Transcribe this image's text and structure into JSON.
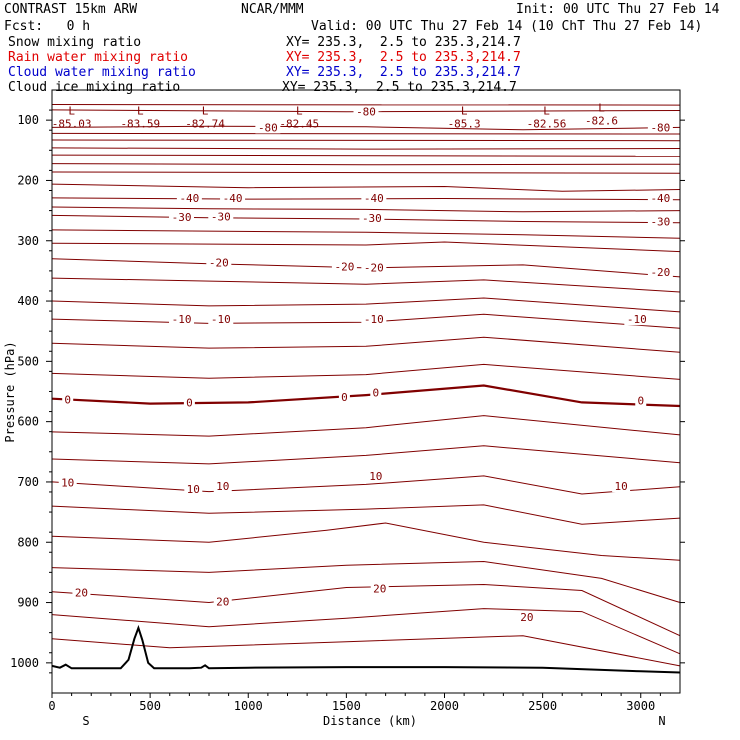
{
  "header": {
    "title": "CONTRAST 15km ARW",
    "center": "NCAR/MMM",
    "init": "Init: 00 UTC Thu 27 Feb 14",
    "fcst": "Fcst:   0 h",
    "valid": "Valid: 00 UTC Thu 27 Feb 14 (10 ChT Thu 27 Feb 14)",
    "legend": [
      {
        "label": "Snow mixing ratio",
        "xy": "XY= 235.3,  2.5 to 235.3,214.7",
        "color": "#000000"
      },
      {
        "label": "Rain water mixing ratio",
        "xy": "XY= 235.3,  2.5 to 235.3,214.7",
        "color": "#e00000"
      },
      {
        "label": "Cloud water mixing ratio",
        "xy": "XY= 235.3,  2.5 to 235.3,214.7",
        "color": "#0000cc"
      },
      {
        "label": "Cloud ice mixing ratio",
        "xy": "XY= 235.3,  2.5 to 235.3,214.7",
        "color": "#000000"
      }
    ]
  },
  "colors": {
    "contour": "#800000",
    "zero_contour": "#800000",
    "terrain": "#000000"
  },
  "chart_data": {
    "type": "line",
    "title": "CONTRAST 15km ARW",
    "xlabel": "Distance (km)",
    "ylabel": "Pressure (hPa)",
    "xlim": [
      0,
      3200
    ],
    "ylim": [
      1050,
      50
    ],
    "y_reversed": true,
    "xticks": [
      0,
      500,
      1000,
      1500,
      2000,
      2500,
      3000
    ],
    "yticks": [
      100,
      200,
      300,
      400,
      500,
      600,
      700,
      800,
      900,
      1000
    ],
    "x_end_labels": {
      "left": "S",
      "right": "N"
    },
    "contour_interval_C": 5,
    "contours": [
      {
        "x": [
          0,
          3200
        ],
        "p": [
          74,
          75
        ],
        "label": ""
      },
      {
        "x": [
          0,
          1500,
          3200
        ],
        "p": [
          83,
          86,
          84
        ],
        "label": "-80"
      },
      {
        "x": [
          0,
          800,
          1600,
          2400,
          3200
        ],
        "p": [
          112,
          110,
          111,
          116,
          112
        ],
        "label": ""
      },
      {
        "x": [
          0,
          3200
        ],
        "p": [
          122,
          123
        ],
        "label": ""
      },
      {
        "x": [
          0,
          3200
        ],
        "p": [
          133,
          134
        ],
        "label": ""
      },
      {
        "x": [
          0,
          1600,
          3200
        ],
        "p": [
          146,
          148,
          147
        ],
        "label": ""
      },
      {
        "x": [
          0,
          3200
        ],
        "p": [
          158,
          160
        ],
        "label": ""
      },
      {
        "x": [
          0,
          1600,
          3200
        ],
        "p": [
          172,
          174,
          173
        ],
        "label": ""
      },
      {
        "x": [
          0,
          3200
        ],
        "p": [
          186,
          188
        ],
        "label": ""
      },
      {
        "x": [
          0,
          1000,
          2000,
          2600,
          3200
        ],
        "p": [
          206,
          212,
          210,
          218,
          215
        ],
        "label": ""
      },
      {
        "x": [
          0,
          1000,
          2000,
          3200
        ],
        "p": [
          229,
          231,
          230,
          232
        ],
        "label": "-40"
      },
      {
        "x": [
          0,
          800,
          1600,
          2400,
          3200
        ],
        "p": [
          244,
          247,
          248,
          252,
          250
        ],
        "label": ""
      },
      {
        "x": [
          0,
          800,
          1600,
          2400,
          3200
        ],
        "p": [
          258,
          262,
          264,
          268,
          270
        ],
        "label": "-30"
      },
      {
        "x": [
          0,
          1600,
          2400,
          3200
        ],
        "p": [
          282,
          286,
          290,
          296
        ],
        "label": ""
      },
      {
        "x": [
          0,
          1600,
          2000,
          3200
        ],
        "p": [
          304,
          307,
          302,
          318
        ],
        "label": ""
      },
      {
        "x": [
          0,
          800,
          1600,
          2400,
          3200
        ],
        "p": [
          330,
          338,
          345,
          340,
          360
        ],
        "label": "-20"
      },
      {
        "x": [
          0,
          1600,
          2200,
          3200
        ],
        "p": [
          362,
          372,
          365,
          385
        ],
        "label": ""
      },
      {
        "x": [
          0,
          800,
          1600,
          2200,
          3200
        ],
        "p": [
          400,
          408,
          405,
          395,
          418
        ],
        "label": ""
      },
      {
        "x": [
          0,
          800,
          1600,
          2200,
          3200
        ],
        "p": [
          430,
          437,
          435,
          422,
          445
        ],
        "label": "-10"
      },
      {
        "x": [
          0,
          800,
          1600,
          2200,
          3200
        ],
        "p": [
          470,
          478,
          475,
          460,
          485
        ],
        "label": ""
      },
      {
        "x": [
          0,
          800,
          1600,
          2200,
          3200
        ],
        "p": [
          520,
          528,
          522,
          505,
          530
        ],
        "label": ""
      },
      {
        "x": [
          0,
          500,
          1000,
          1600,
          2200,
          2700,
          3200
        ],
        "p": [
          562,
          570,
          568,
          556,
          540,
          568,
          574
        ],
        "label": "0",
        "bold": true
      },
      {
        "x": [
          0,
          800,
          1600,
          2200,
          3200
        ],
        "p": [
          617,
          624,
          610,
          590,
          622
        ],
        "label": ""
      },
      {
        "x": [
          0,
          800,
          1600,
          2200,
          3200
        ],
        "p": [
          662,
          670,
          656,
          640,
          668
        ],
        "label": ""
      },
      {
        "x": [
          0,
          800,
          1600,
          2200,
          2700,
          3200
        ],
        "p": [
          700,
          716,
          704,
          690,
          720,
          708
        ],
        "label": "10"
      },
      {
        "x": [
          0,
          800,
          1600,
          2200,
          2700,
          3200
        ],
        "p": [
          740,
          752,
          745,
          738,
          770,
          760
        ],
        "label": ""
      },
      {
        "x": [
          0,
          800,
          1400,
          1700,
          2200,
          2800,
          3200
        ],
        "p": [
          790,
          800,
          780,
          768,
          800,
          822,
          830
        ],
        "label": ""
      },
      {
        "x": [
          0,
          800,
          1500,
          2200,
          2800,
          3200
        ],
        "p": [
          842,
          850,
          838,
          832,
          860,
          900
        ],
        "label": ""
      },
      {
        "x": [
          0,
          800,
          1500,
          2200,
          2700,
          3200
        ],
        "p": [
          882,
          900,
          875,
          870,
          880,
          955
        ],
        "label": "20"
      },
      {
        "x": [
          0,
          800,
          1500,
          2200,
          2700,
          3200
        ],
        "p": [
          920,
          940,
          926,
          910,
          915,
          985
        ],
        "label": ""
      },
      {
        "x": [
          0,
          600,
          1500,
          2400,
          3200
        ],
        "p": [
          960,
          975,
          965,
          955,
          1005
        ],
        "label": ""
      }
    ],
    "extrema": [
      {
        "x": 100,
        "p": 104,
        "type": "L",
        "value": "-85.03"
      },
      {
        "x": 450,
        "p": 104,
        "type": "L",
        "value": "-83.59"
      },
      {
        "x": 780,
        "p": 104,
        "type": "L",
        "value": "-82.74"
      },
      {
        "x": 1260,
        "p": 104,
        "type": "L",
        "value": "-82.45"
      },
      {
        "x": 2100,
        "p": 104,
        "type": "L",
        "value": "-85.3"
      },
      {
        "x": 2520,
        "p": 104,
        "type": "L",
        "value": "-82.56"
      },
      {
        "x": 2800,
        "p": 99,
        "type": "L",
        "value": "-82.6"
      }
    ],
    "inline_labels": [
      {
        "x": 1100,
        "p": 112,
        "text": "-80"
      },
      {
        "x": 1600,
        "p": 86,
        "text": "-80"
      },
      {
        "x": 3100,
        "p": 112,
        "text": "-80"
      },
      {
        "x": 700,
        "p": 229,
        "text": "-40"
      },
      {
        "x": 920,
        "p": 229,
        "text": "-40"
      },
      {
        "x": 1640,
        "p": 229,
        "text": "-40"
      },
      {
        "x": 3100,
        "p": 229,
        "text": "-40"
      },
      {
        "x": 660,
        "p": 261,
        "text": "-30"
      },
      {
        "x": 860,
        "p": 260,
        "text": "-30"
      },
      {
        "x": 1630,
        "p": 262,
        "text": "-30"
      },
      {
        "x": 3100,
        "p": 268,
        "text": "-30"
      },
      {
        "x": 850,
        "p": 336,
        "text": "-20"
      },
      {
        "x": 1490,
        "p": 343,
        "text": "-20"
      },
      {
        "x": 1640,
        "p": 344,
        "text": "-20"
      },
      {
        "x": 3100,
        "p": 352,
        "text": "-20"
      },
      {
        "x": 660,
        "p": 430,
        "text": "-10"
      },
      {
        "x": 860,
        "p": 430,
        "text": "-10"
      },
      {
        "x": 1640,
        "p": 430,
        "text": "-10"
      },
      {
        "x": 2980,
        "p": 430,
        "text": "-10"
      },
      {
        "x": 80,
        "p": 563,
        "text": "0"
      },
      {
        "x": 700,
        "p": 568,
        "text": "0"
      },
      {
        "x": 1490,
        "p": 559,
        "text": "0"
      },
      {
        "x": 1650,
        "p": 552,
        "text": "0"
      },
      {
        "x": 3000,
        "p": 565,
        "text": "0"
      },
      {
        "x": 80,
        "p": 701,
        "text": "10"
      },
      {
        "x": 720,
        "p": 712,
        "text": "10"
      },
      {
        "x": 870,
        "p": 707,
        "text": "10"
      },
      {
        "x": 1650,
        "p": 690,
        "text": "10"
      },
      {
        "x": 2900,
        "p": 707,
        "text": "10"
      },
      {
        "x": 150,
        "p": 883,
        "text": "20"
      },
      {
        "x": 870,
        "p": 898,
        "text": "20"
      },
      {
        "x": 1670,
        "p": 877,
        "text": "20"
      },
      {
        "x": 2420,
        "p": 924,
        "text": "20"
      }
    ],
    "terrain_surface": {
      "x": [
        0,
        40,
        70,
        100,
        200,
        350,
        390,
        420,
        440,
        460,
        490,
        520,
        700,
        760,
        780,
        800,
        1000,
        1500,
        2000,
        2500,
        3000,
        3200
      ],
      "p": [
        1005,
        1008,
        1003,
        1009,
        1009,
        1009,
        995,
        960,
        942,
        962,
        1000,
        1009,
        1009,
        1008,
        1004,
        1009,
        1008,
        1007,
        1007,
        1008,
        1014,
        1016
      ]
    }
  }
}
